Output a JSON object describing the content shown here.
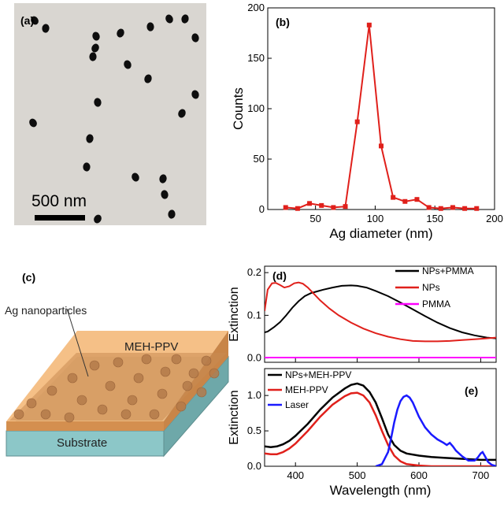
{
  "panel_a": {
    "label": "(a)",
    "scale_text": "500 nm",
    "bg_color": "#d9d6d1",
    "particle_color": "#0e0e0e"
  },
  "panel_c": {
    "label": "(c)",
    "layer_top": "MEH-PPV",
    "layer_bottom": "Substrate",
    "annotation": "Ag nanoparticles",
    "top_color": "#f4b97a",
    "substrate_color": "#8cc7c8"
  },
  "chart_data": [
    {
      "panel": "(b)",
      "type": "line",
      "title": "",
      "xlabel": "Ag diameter (nm)",
      "ylabel": "Counts",
      "xlim": [
        10,
        200
      ],
      "ylim": [
        0,
        200
      ],
      "xticks": [
        50,
        100,
        150,
        200
      ],
      "yticks": [
        0,
        50,
        100,
        150,
        200
      ],
      "series": [
        {
          "color": "#e0201b",
          "x": [
            25,
            35,
            45,
            55,
            65,
            75,
            85,
            95,
            105,
            115,
            125,
            135,
            145,
            155,
            165,
            175,
            185
          ],
          "y": [
            2,
            1,
            6,
            4,
            2,
            3,
            87,
            183,
            63,
            12,
            8,
            10,
            2,
            1,
            2,
            1,
            1
          ]
        }
      ]
    },
    {
      "panel": "(d)",
      "type": "line",
      "title": "",
      "xlabel": "",
      "ylabel": "Extinction",
      "xlim": [
        350,
        725
      ],
      "ylim": [
        -0.01,
        0.215
      ],
      "xticks": [
        400,
        500,
        600,
        700
      ],
      "yticks": [
        0.0,
        0.1,
        0.2
      ],
      "ytick_labels": [
        "0.0",
        "0.1",
        "0.2"
      ],
      "legend_position": "top-right",
      "series": [
        {
          "name": "NPs+PMMA",
          "color": "#000000",
          "x": [
            350,
            355,
            365,
            375,
            385,
            395,
            405,
            415,
            425,
            435,
            445,
            460,
            475,
            490,
            500,
            515,
            530,
            550,
            570,
            590,
            610,
            630,
            650,
            670,
            690,
            710,
            725
          ],
          "y": [
            0.06,
            0.062,
            0.072,
            0.084,
            0.1,
            0.118,
            0.133,
            0.145,
            0.152,
            0.156,
            0.16,
            0.165,
            0.169,
            0.17,
            0.169,
            0.165,
            0.157,
            0.145,
            0.13,
            0.114,
            0.098,
            0.083,
            0.07,
            0.06,
            0.053,
            0.048,
            0.046
          ]
        },
        {
          "name": "NPs",
          "color": "#e0201b",
          "x": [
            350,
            355,
            362,
            368,
            375,
            382,
            390,
            398,
            405,
            412,
            420,
            430,
            440,
            455,
            470,
            490,
            510,
            530,
            550,
            570,
            590,
            610,
            630,
            650,
            670,
            690,
            710,
            725
          ],
          "y": [
            0.11,
            0.16,
            0.175,
            0.176,
            0.171,
            0.165,
            0.168,
            0.175,
            0.177,
            0.174,
            0.165,
            0.15,
            0.135,
            0.116,
            0.1,
            0.083,
            0.069,
            0.058,
            0.05,
            0.044,
            0.04,
            0.039,
            0.039,
            0.04,
            0.042,
            0.044,
            0.046,
            0.048
          ]
        },
        {
          "name": "PMMA",
          "color": "#ff00ff",
          "x": [
            350,
            725
          ],
          "y": [
            0.001,
            0.001
          ]
        }
      ]
    },
    {
      "panel": "(e)",
      "type": "line",
      "title": "",
      "xlabel": "Wavelength (nm)",
      "ylabel": "Extinction",
      "xlim": [
        350,
        725
      ],
      "ylim": [
        0,
        1.38
      ],
      "xticks": [
        400,
        500,
        600,
        700
      ],
      "yticks": [
        0.0,
        0.5,
        1.0
      ],
      "ytick_labels": [
        "0.0",
        "0.5",
        "1.0"
      ],
      "legend_position": "top-left",
      "series": [
        {
          "name": "NPs+MEH-PPV",
          "color": "#000000",
          "x": [
            350,
            360,
            370,
            380,
            390,
            400,
            420,
            440,
            460,
            480,
            490,
            500,
            510,
            520,
            530,
            540,
            550,
            560,
            570,
            580,
            600,
            620,
            640,
            660,
            680,
            700,
            725
          ],
          "y": [
            0.28,
            0.27,
            0.28,
            0.31,
            0.36,
            0.43,
            0.6,
            0.8,
            0.97,
            1.1,
            1.15,
            1.17,
            1.14,
            1.05,
            0.9,
            0.68,
            0.45,
            0.3,
            0.22,
            0.18,
            0.15,
            0.13,
            0.12,
            0.11,
            0.1,
            0.09,
            0.09
          ]
        },
        {
          "name": "MEH-PPV",
          "color": "#e0201b",
          "x": [
            350,
            360,
            370,
            380,
            390,
            400,
            420,
            440,
            460,
            480,
            490,
            500,
            510,
            520,
            530,
            540,
            550,
            560,
            570,
            580,
            600,
            620,
            650,
            700,
            725
          ],
          "y": [
            0.18,
            0.17,
            0.17,
            0.2,
            0.25,
            0.32,
            0.5,
            0.7,
            0.87,
            0.99,
            1.03,
            1.04,
            1.0,
            0.9,
            0.72,
            0.5,
            0.3,
            0.15,
            0.07,
            0.03,
            0.01,
            0.0,
            0.0,
            0.0,
            0.0
          ]
        },
        {
          "name": "Laser",
          "color": "#1a1aff",
          "x": [
            530,
            540,
            550,
            555,
            560,
            565,
            570,
            575,
            580,
            585,
            590,
            595,
            600,
            610,
            620,
            630,
            640,
            645,
            650,
            655,
            660,
            670,
            680,
            690,
            695,
            700,
            703,
            707,
            712,
            718,
            725
          ],
          "y": [
            0.0,
            0.03,
            0.2,
            0.4,
            0.62,
            0.8,
            0.92,
            0.98,
            1.0,
            0.97,
            0.9,
            0.8,
            0.7,
            0.55,
            0.45,
            0.38,
            0.33,
            0.3,
            0.33,
            0.28,
            0.22,
            0.14,
            0.08,
            0.08,
            0.12,
            0.18,
            0.2,
            0.14,
            0.06,
            0.02,
            0.0
          ]
        }
      ]
    }
  ]
}
